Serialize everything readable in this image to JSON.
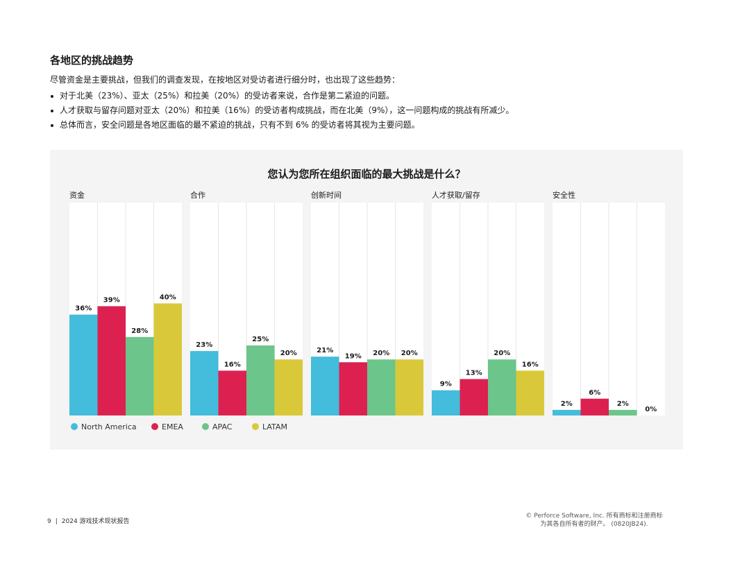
{
  "page": {
    "heading": "各地区的挑战趋势",
    "intro": "尽管资金是主要挑战，但我们的调查发现，在按地区对受访者进行细分时，也出现了这些趋势：",
    "bullets": [
      "对于北美（23%）、亚太（25%）和拉美（20%）的受访者来说，合作是第二紧迫的问题。",
      "人才获取与留存问题对亚太（20%）和拉美（16%）的受访者构成挑战，而在北美（9%），这一问题构成的挑战有所减少。",
      "总体而言，安全问题是各地区面临的最不紧迫的挑战，只有不到 6% 的受访者将其视为主要问题。"
    ],
    "footer": {
      "page_number": "9",
      "doc_title": "2024 游戏技术现状报告",
      "copyright_line1": "© Perforce Software, Inc. 所有商标和注册商标",
      "copyright_line2": "为其各自所有者的财产。 (0820JB24)."
    }
  },
  "chart_data": {
    "type": "bar",
    "title": "您认为您所在组织面临的最大挑战是什么？",
    "value_unit": "%",
    "ylim": [
      0,
      76
    ],
    "grid": true,
    "legend_position": "bottom-left",
    "groups": [
      "资金",
      "合作",
      "创新时间",
      "人才获取/留存",
      "安全性"
    ],
    "series": [
      {
        "name": "North America",
        "color": "#44bcdc",
        "values": [
          36,
          23,
          21,
          9,
          2
        ]
      },
      {
        "name": "EMEA",
        "color": "#dc2151",
        "values": [
          39,
          16,
          19,
          13,
          6
        ]
      },
      {
        "name": "APAC",
        "color": "#6cc58a",
        "values": [
          28,
          25,
          20,
          20,
          2
        ]
      },
      {
        "name": "LATAM",
        "color": "#d9c93a",
        "values": [
          40,
          20,
          20,
          16,
          0
        ]
      }
    ]
  }
}
